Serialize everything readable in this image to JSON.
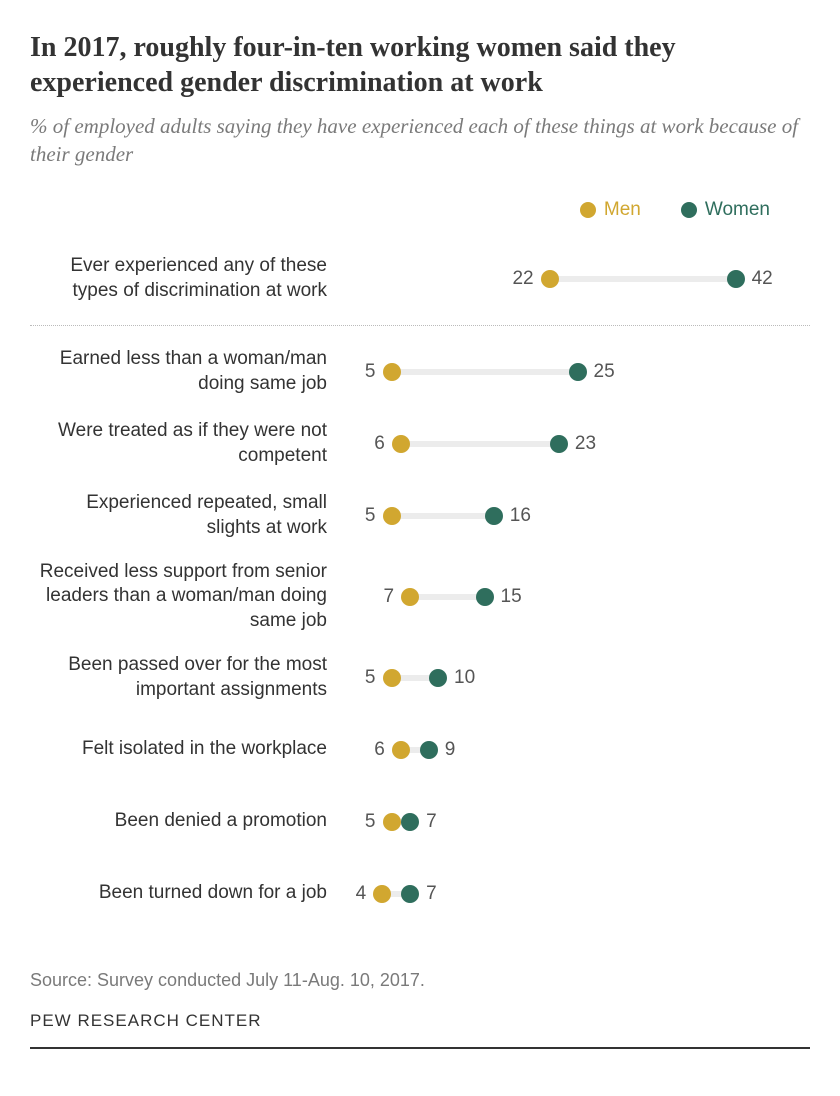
{
  "title": "In 2017, roughly four-in-ten working women said they experienced gender discrimination at work",
  "subtitle": "% of employed adults saying they have experienced each of these things at work because of their gender",
  "legend": {
    "men_label": "Men",
    "women_label": "Women",
    "men_color": "#d1a730",
    "women_color": "#2f6e5d"
  },
  "chart": {
    "scale_min": 0,
    "scale_max": 50,
    "dot_radius": 9,
    "connector_color": "#ececec",
    "label_color": "#555555",
    "rows": [
      {
        "label": "Ever experienced any of these types of discrimination at work",
        "men": 22,
        "women": 42,
        "summary": true
      },
      {
        "label": "Earned less than a woman/man doing same job",
        "men": 5,
        "women": 25
      },
      {
        "label": "Were treated as if they were not competent",
        "men": 6,
        "women": 23
      },
      {
        "label": "Experienced repeated, small slights at work",
        "men": 5,
        "women": 16
      },
      {
        "label": "Received less support from senior leaders than a woman/man doing same job",
        "men": 7,
        "women": 15
      },
      {
        "label": "Been passed over for the most important assignments",
        "men": 5,
        "women": 10
      },
      {
        "label": "Felt isolated in the workplace",
        "men": 6,
        "women": 9
      },
      {
        "label": "Been denied a promotion",
        "men": 5,
        "women": 7
      },
      {
        "label": "Been turned down for a job",
        "men": 4,
        "women": 7
      }
    ]
  },
  "source": "Source: Survey conducted July 11-Aug. 10, 2017.",
  "attribution": "PEW RESEARCH CENTER"
}
